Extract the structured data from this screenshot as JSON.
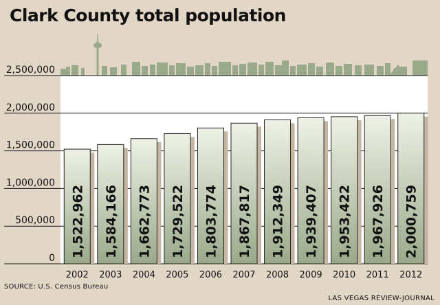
{
  "header": {
    "title": "Clark County total population"
  },
  "footer": {
    "source": "SOURCE: U.S. Census Bureau",
    "credit": "LAS VEGAS REVIEW-JOURNAL"
  },
  "colors": {
    "background": "#e2d6c6",
    "plot_background": "#ffffff",
    "bar_top": "#eef2e6",
    "bar_bottom": "#9aa98a",
    "bar_shadow": "#c5b6a2",
    "skyline": "#9aa98a"
  },
  "chart_data": {
    "type": "bar",
    "title": "Clark County total population",
    "xlabel": "",
    "ylabel": "",
    "categories": [
      "2002",
      "2003",
      "2004",
      "2005",
      "2006",
      "2007",
      "2008",
      "2009",
      "2010",
      "2011",
      "2012"
    ],
    "values": [
      1522962,
      1584166,
      1662773,
      1729522,
      1803774,
      1867817,
      1912349,
      1939407,
      1953422,
      1967926,
      2000759
    ],
    "data_labels": [
      "1,522,962",
      "1,584,166",
      "1,662,773",
      "1,729,522",
      "1,803,774",
      "1,867,817",
      "1,912,349",
      "1,939,407",
      "1,953,422",
      "1,967,926",
      "2,000,759"
    ],
    "ylim": [
      0,
      2500000
    ],
    "yticks": [
      0,
      500000,
      1000000,
      1500000,
      2000000,
      2500000
    ],
    "ytick_labels": [
      "0",
      "500,000",
      "1,000,000",
      "1,500,000",
      "2,000,000",
      "2,500,000"
    ],
    "grid": true,
    "legend": "none"
  }
}
